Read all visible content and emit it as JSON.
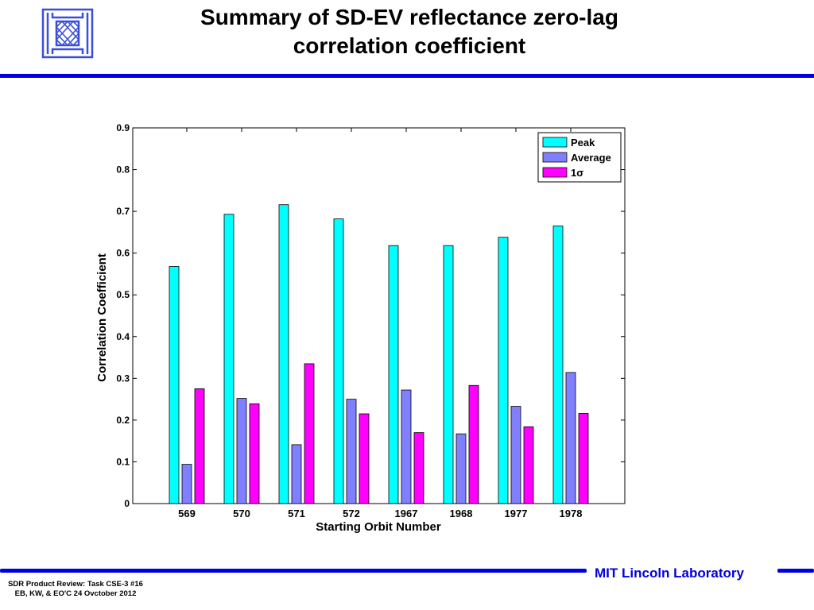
{
  "slide": {
    "title_line1": "Summary of SD-EV reflectance zero-lag",
    "title_line2": "correlation coefficient",
    "logo_icon": "mit-ll-logo-icon",
    "footer_org": "MIT Lincoln Laboratory",
    "footer_note_line1": "SDR Product Review: Task CSE-3 #16",
    "footer_note_line2": "EB, KW, & EO'C  24 Ovctober 2012",
    "accent_color": "#0000e0"
  },
  "chart_data": {
    "type": "bar",
    "title": "",
    "xlabel": "Starting Orbit Number",
    "ylabel": "Correlation Coefficient",
    "categories": [
      "569",
      "570",
      "571",
      "572",
      "1967",
      "1968",
      "1977",
      "1978"
    ],
    "ylim": [
      0,
      0.9
    ],
    "yticks": [
      "0",
      "0.1",
      "0.2",
      "0.3",
      "0.4",
      "0.5",
      "0.6",
      "0.7",
      "0.8",
      "0.9"
    ],
    "grid": false,
    "legend_position": "top-right",
    "series": [
      {
        "name": "Peak",
        "color": "#00ffff",
        "values": [
          0.568,
          0.693,
          0.716,
          0.682,
          0.618,
          0.618,
          0.638,
          0.665
        ]
      },
      {
        "name": "Average",
        "color": "#8080ff",
        "values": [
          0.094,
          0.252,
          0.141,
          0.25,
          0.272,
          0.167,
          0.233,
          0.314
        ]
      },
      {
        "name": "1σ",
        "color": "#ff00ff",
        "values": [
          0.275,
          0.239,
          0.335,
          0.215,
          0.17,
          0.283,
          0.184,
          0.216
        ]
      }
    ]
  }
}
